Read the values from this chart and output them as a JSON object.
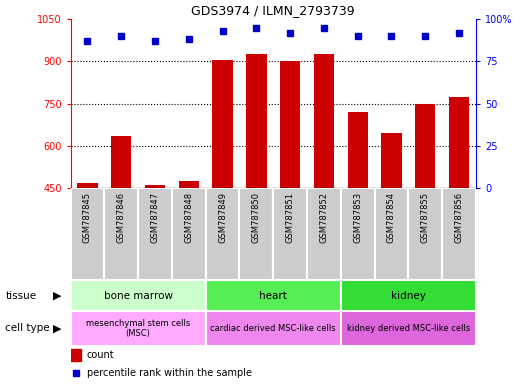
{
  "title": "GDS3974 / ILMN_2793739",
  "samples": [
    "GSM787845",
    "GSM787846",
    "GSM787847",
    "GSM787848",
    "GSM787849",
    "GSM787850",
    "GSM787851",
    "GSM787852",
    "GSM787853",
    "GSM787854",
    "GSM787855",
    "GSM787856"
  ],
  "counts": [
    470,
    635,
    462,
    475,
    905,
    925,
    902,
    925,
    720,
    645,
    750,
    775
  ],
  "percentile_ranks": [
    87,
    90,
    87,
    88,
    93,
    95,
    92,
    95,
    90,
    90,
    90,
    92
  ],
  "ylim_left": [
    450,
    1050
  ],
  "ylim_right": [
    0,
    100
  ],
  "yticks_left": [
    450,
    600,
    750,
    900,
    1050
  ],
  "yticks_right": [
    0,
    25,
    50,
    75,
    100
  ],
  "bar_color": "#cc0000",
  "dot_color": "#0000cc",
  "tissue_groups": [
    {
      "label": "bone marrow",
      "start": 0,
      "end": 4,
      "color": "#ccffcc"
    },
    {
      "label": "heart",
      "start": 4,
      "end": 8,
      "color": "#55ee55"
    },
    {
      "label": "kidney",
      "start": 8,
      "end": 12,
      "color": "#33dd33"
    }
  ],
  "cell_type_groups": [
    {
      "label": "mesenchymal stem cells\n(MSC)",
      "start": 0,
      "end": 4,
      "color": "#ffaaff"
    },
    {
      "label": "cardiac derived MSC-like cells",
      "start": 4,
      "end": 8,
      "color": "#ee88ee"
    },
    {
      "label": "kidney derived MSC-like cells",
      "start": 8,
      "end": 12,
      "color": "#dd66dd"
    }
  ],
  "tissue_label": "tissue",
  "cell_type_label": "cell type",
  "legend_count": "count",
  "legend_percentile": "percentile rank within the sample",
  "sample_bg_color": "#cccccc",
  "sample_border_color": "#ffffff"
}
